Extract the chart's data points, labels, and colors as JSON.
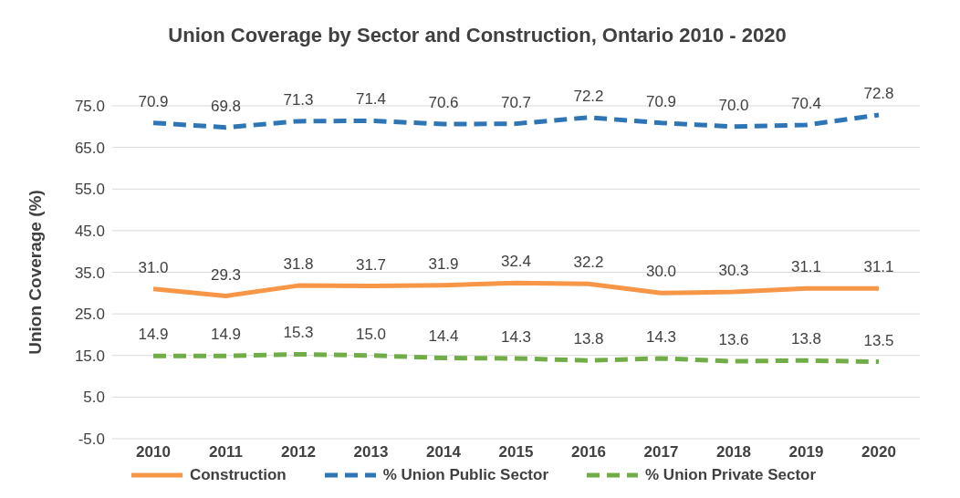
{
  "chart_data": {
    "type": "line",
    "title": "Union Coverage by Sector and Construction, Ontario 2010 - 2020",
    "ylabel": "Union Coverage (%)",
    "categories": [
      "2010",
      "2011",
      "2012",
      "2013",
      "2014",
      "2015",
      "2016",
      "2017",
      "2018",
      "2019",
      "2020"
    ],
    "ylim": [
      -5,
      75
    ],
    "yticks": [
      {
        "value": -5,
        "label": "-5.0"
      },
      {
        "value": 5,
        "label": "5.0"
      },
      {
        "value": 15,
        "label": "15.0"
      },
      {
        "value": 25,
        "label": "25.0"
      },
      {
        "value": 35,
        "label": "35.0"
      },
      {
        "value": 45,
        "label": "45.0"
      },
      {
        "value": 55,
        "label": "55.0"
      },
      {
        "value": 65,
        "label": "65.0"
      },
      {
        "value": 75,
        "label": "75.0"
      }
    ],
    "grid": "y",
    "legend": "bottom",
    "marker": "none",
    "series": [
      {
        "name": "Construction",
        "color": "#f79646",
        "line_style": "solid",
        "values": [
          31.0,
          29.3,
          31.8,
          31.7,
          31.9,
          32.4,
          32.2,
          30.0,
          30.3,
          31.1,
          31.1
        ],
        "value_labels": [
          "31.0",
          "29.3",
          "31.8",
          "31.7",
          "31.9",
          "32.4",
          "32.2",
          "30.0",
          "30.3",
          "31.1",
          "31.1"
        ]
      },
      {
        "name": "% Union Public Sector",
        "color": "#2e75b6",
        "line_style": "dashed",
        "values": [
          70.9,
          69.8,
          71.3,
          71.4,
          70.6,
          70.7,
          72.2,
          70.9,
          70.0,
          70.4,
          72.8
        ],
        "value_labels": [
          "70.9",
          "69.8",
          "71.3",
          "71.4",
          "70.6",
          "70.7",
          "72.2",
          "70.9",
          "70.0",
          "70.4",
          "72.8"
        ]
      },
      {
        "name": "% Union Private Sector",
        "color": "#70ad47",
        "line_style": "dashed",
        "values": [
          14.9,
          14.9,
          15.3,
          15.0,
          14.4,
          14.3,
          13.8,
          14.3,
          13.6,
          13.8,
          13.5
        ],
        "value_labels": [
          "14.9",
          "14.9",
          "15.3",
          "15.0",
          "14.4",
          "14.3",
          "13.8",
          "14.3",
          "13.6",
          "13.8",
          "13.5"
        ]
      }
    ]
  }
}
